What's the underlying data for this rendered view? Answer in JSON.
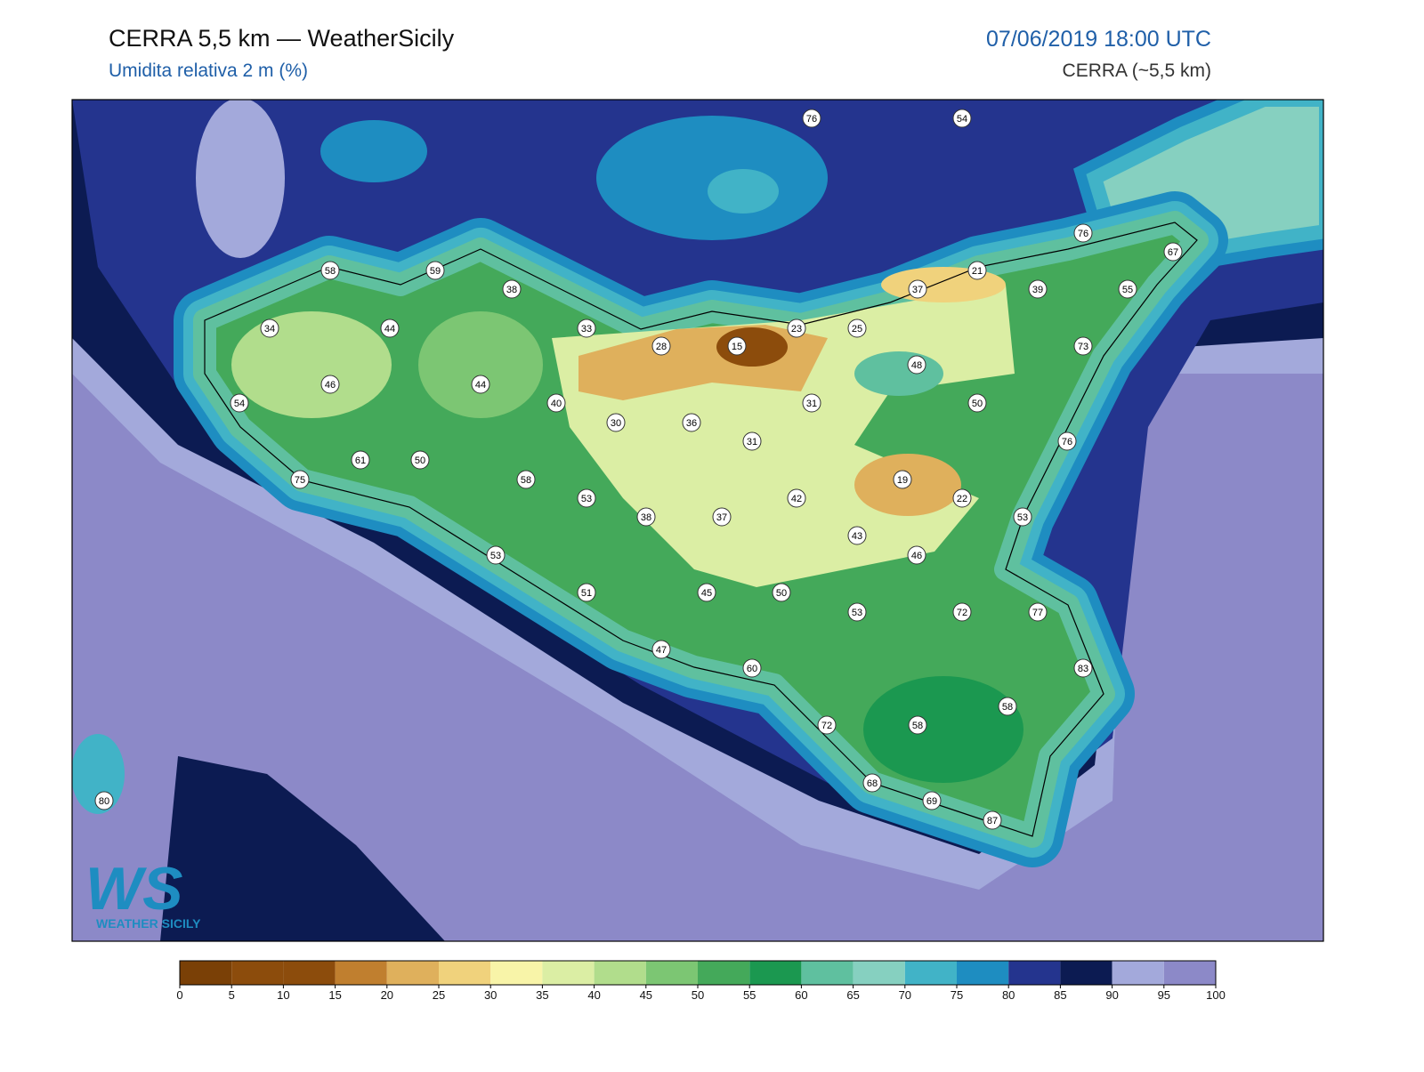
{
  "header": {
    "title": "CERRA 5,5 km — WeatherSicily",
    "subtitle": "Umidita relativa 2 m (%)",
    "datetime": "07/06/2019 18:00 UTC",
    "source": "CERRA (~5,5 km)"
  },
  "logo": {
    "letters": "WS",
    "name": "WEATHER SICILY"
  },
  "stations": {
    "values": [
      76,
      54,
      76,
      67,
      58,
      59,
      38,
      21,
      37,
      39,
      55,
      34,
      44,
      33,
      23,
      25,
      28,
      15,
      73,
      48,
      46,
      44,
      54,
      40,
      31,
      50,
      30,
      36,
      31,
      76,
      61,
      50,
      58,
      19,
      53,
      42,
      22,
      75,
      38,
      37,
      53,
      43,
      53,
      46,
      51,
      45,
      50,
      72,
      77,
      53,
      47,
      60,
      83,
      58,
      72,
      58,
      68,
      69,
      87,
      80
    ]
  },
  "colorbar": {
    "ticks": [
      0,
      5,
      10,
      15,
      20,
      25,
      30,
      35,
      40,
      45,
      50,
      55,
      60,
      65,
      70,
      75,
      80,
      85,
      90,
      95,
      100
    ],
    "colors": [
      "#7a4006",
      "#8c4c0c",
      "#8c4c0c",
      "#c07f2f",
      "#dfb05c",
      "#f0d27c",
      "#f8f4a8",
      "#dbeea4",
      "#b1dd8c",
      "#7cc673",
      "#44a95a",
      "#1b9850",
      "#5fc09f",
      "#86d0c0",
      "#41b3c7",
      "#1e8dc1",
      "#24348e",
      "#0c1b52",
      "#a3a9db",
      "#8c89c8"
    ]
  }
}
